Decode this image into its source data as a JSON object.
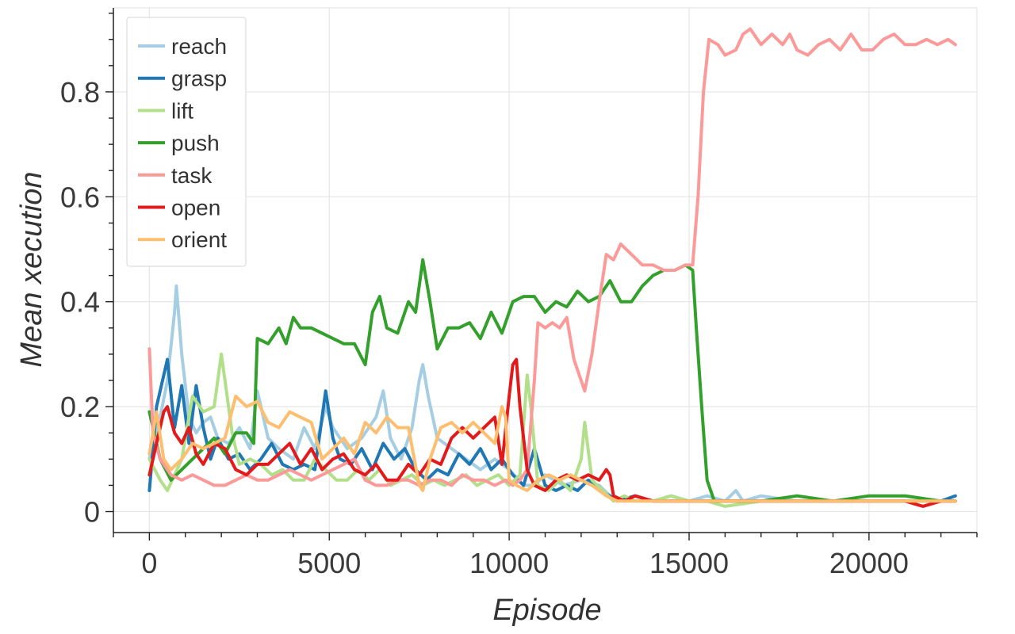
{
  "chart_data": {
    "type": "line",
    "title": "",
    "xlabel": "Episode",
    "ylabel": "Mean xecution",
    "xlim": [
      -1000,
      23000
    ],
    "ylim": [
      -0.04,
      0.96
    ],
    "xticks": [
      0,
      5000,
      10000,
      15000,
      20000
    ],
    "xtick_labels": [
      "0",
      "5000",
      "10000",
      "15000",
      "20000"
    ],
    "yticks": [
      0,
      0.2,
      0.4,
      0.6,
      0.8
    ],
    "ytick_labels": [
      "0",
      "0.2",
      "0.4",
      "0.6",
      "0.8"
    ],
    "grid": true,
    "legend_position": "top-left",
    "series": [
      {
        "name": "reach",
        "color": "#a6cee3",
        "x": [
          0,
          300,
          500,
          700,
          750,
          900,
          1100,
          1300,
          1500,
          1700,
          1900,
          2200,
          2500,
          2800,
          3000,
          3300,
          3600,
          4000,
          4300,
          4600,
          4900,
          5100,
          5500,
          5900,
          6300,
          6500,
          6700,
          7000,
          7300,
          7500,
          7600,
          7750,
          8000,
          8400,
          8800,
          9200,
          9600,
          10000,
          10400,
          10700,
          11000,
          11500,
          12000,
          12500,
          12800,
          13000,
          13500,
          14000,
          14500,
          15000,
          15500,
          16000,
          16300,
          16500,
          17000,
          18000,
          19000,
          20000,
          21000,
          22000,
          22400
        ],
        "y": [
          0.1,
          0.18,
          0.25,
          0.38,
          0.43,
          0.3,
          0.18,
          0.15,
          0.17,
          0.18,
          0.14,
          0.13,
          0.16,
          0.12,
          0.23,
          0.14,
          0.12,
          0.1,
          0.16,
          0.12,
          0.2,
          0.16,
          0.12,
          0.14,
          0.18,
          0.23,
          0.14,
          0.1,
          0.16,
          0.25,
          0.28,
          0.22,
          0.14,
          0.12,
          0.1,
          0.08,
          0.1,
          0.08,
          0.05,
          0.05,
          0.07,
          0.05,
          0.06,
          0.05,
          0.03,
          0.02,
          0.03,
          0.02,
          0.03,
          0.02,
          0.03,
          0.02,
          0.04,
          0.02,
          0.03,
          0.02,
          0.02,
          0.02,
          0.02,
          0.02,
          0.02
        ]
      },
      {
        "name": "grasp",
        "color": "#1f78b4",
        "x": [
          0,
          200,
          500,
          700,
          900,
          1100,
          1300,
          1500,
          1700,
          1900,
          2200,
          2500,
          2800,
          3100,
          3400,
          3700,
          4000,
          4300,
          4600,
          4900,
          5100,
          5300,
          5600,
          5900,
          6200,
          6500,
          6800,
          7100,
          7400,
          7700,
          8000,
          8300,
          8600,
          8900,
          9200,
          9500,
          9800,
          10100,
          10400,
          10700,
          11000,
          11300,
          11600,
          11900,
          12200,
          12500,
          12800,
          13000,
          13500,
          14000,
          14500,
          15000,
          15500,
          16000,
          17000,
          18000,
          19000,
          20000,
          21000,
          22000,
          22400
        ],
        "y": [
          0.04,
          0.2,
          0.29,
          0.16,
          0.24,
          0.13,
          0.24,
          0.16,
          0.1,
          0.14,
          0.1,
          0.11,
          0.08,
          0.1,
          0.13,
          0.09,
          0.08,
          0.09,
          0.08,
          0.23,
          0.14,
          0.1,
          0.09,
          0.12,
          0.08,
          0.13,
          0.1,
          0.12,
          0.08,
          0.06,
          0.08,
          0.07,
          0.11,
          0.09,
          0.12,
          0.08,
          0.1,
          0.07,
          0.05,
          0.12,
          0.05,
          0.04,
          0.05,
          0.04,
          0.06,
          0.04,
          0.03,
          0.02,
          0.03,
          0.02,
          0.02,
          0.02,
          0.02,
          0.02,
          0.02,
          0.02,
          0.02,
          0.02,
          0.02,
          0.02,
          0.03
        ]
      },
      {
        "name": "lift",
        "color": "#b2df8a",
        "x": [
          0,
          300,
          500,
          700,
          900,
          1200,
          1500,
          1800,
          2000,
          2100,
          2300,
          2500,
          2800,
          3100,
          3400,
          3700,
          4000,
          4300,
          4600,
          4900,
          5200,
          5500,
          5800,
          6100,
          6400,
          6700,
          7000,
          7300,
          7600,
          7900,
          8200,
          8500,
          8800,
          9100,
          9400,
          9700,
          10000,
          10300,
          10500,
          10600,
          10800,
          11100,
          11400,
          11700,
          12000,
          12100,
          12300,
          12600,
          12900,
          13200,
          13500,
          14000,
          14500,
          15000,
          15500,
          16000,
          17000,
          18000,
          19000,
          20000,
          21000,
          22000,
          22400
        ],
        "y": [
          0.1,
          0.06,
          0.04,
          0.07,
          0.1,
          0.22,
          0.19,
          0.2,
          0.3,
          0.25,
          0.15,
          0.09,
          0.1,
          0.09,
          0.07,
          0.08,
          0.06,
          0.06,
          0.1,
          0.08,
          0.06,
          0.06,
          0.08,
          0.06,
          0.08,
          0.05,
          0.06,
          0.07,
          0.05,
          0.06,
          0.05,
          0.06,
          0.07,
          0.05,
          0.06,
          0.07,
          0.05,
          0.07,
          0.26,
          0.2,
          0.05,
          0.04,
          0.06,
          0.04,
          0.1,
          0.17,
          0.06,
          0.04,
          0.02,
          0.03,
          0.02,
          0.02,
          0.03,
          0.02,
          0.02,
          0.01,
          0.02,
          0.02,
          0.02,
          0.02,
          0.02,
          0.02,
          0.02
        ]
      },
      {
        "name": "push",
        "color": "#33a02c",
        "x": [
          0,
          300,
          600,
          900,
          1200,
          1500,
          1800,
          2100,
          2400,
          2700,
          2900,
          3000,
          3300,
          3600,
          3800,
          4000,
          4200,
          4500,
          4800,
          5100,
          5400,
          5700,
          6000,
          6200,
          6400,
          6600,
          6900,
          7200,
          7400,
          7600,
          7800,
          8000,
          8300,
          8600,
          8900,
          9200,
          9500,
          9800,
          10100,
          10400,
          10700,
          11000,
          11300,
          11600,
          11900,
          12200,
          12500,
          12800,
          13100,
          13400,
          13700,
          14000,
          14300,
          14600,
          14900,
          15100,
          15200,
          15350,
          15500,
          15700,
          16000,
          17000,
          18000,
          19000,
          20000,
          21000,
          22000,
          22400
        ],
        "y": [
          0.19,
          0.1,
          0.06,
          0.08,
          0.1,
          0.12,
          0.14,
          0.11,
          0.15,
          0.15,
          0.13,
          0.33,
          0.32,
          0.35,
          0.32,
          0.37,
          0.35,
          0.35,
          0.34,
          0.33,
          0.32,
          0.32,
          0.28,
          0.38,
          0.41,
          0.35,
          0.34,
          0.4,
          0.38,
          0.48,
          0.4,
          0.31,
          0.35,
          0.35,
          0.36,
          0.33,
          0.38,
          0.34,
          0.4,
          0.41,
          0.41,
          0.38,
          0.4,
          0.39,
          0.42,
          0.4,
          0.41,
          0.44,
          0.4,
          0.4,
          0.43,
          0.45,
          0.46,
          0.46,
          0.47,
          0.46,
          0.35,
          0.2,
          0.06,
          0.02,
          0.02,
          0.02,
          0.03,
          0.02,
          0.03,
          0.03,
          0.02,
          0.02
        ]
      },
      {
        "name": "task",
        "color": "#fb9a99",
        "x": [
          0,
          100,
          300,
          600,
          900,
          1200,
          1500,
          1800,
          2100,
          2400,
          2700,
          3000,
          3300,
          3600,
          3900,
          4200,
          4500,
          4800,
          5100,
          5400,
          5700,
          6000,
          6300,
          6600,
          6900,
          7200,
          7500,
          7800,
          8100,
          8400,
          8700,
          9000,
          9300,
          9600,
          9900,
          10100,
          10300,
          10500,
          10700,
          10800,
          11000,
          11200,
          11400,
          11600,
          11800,
          11900,
          12100,
          12300,
          12500,
          12700,
          12900,
          13100,
          13400,
          13700,
          14000,
          14300,
          14600,
          14900,
          15100,
          15250,
          15400,
          15550,
          15800,
          16000,
          16300,
          16500,
          16700,
          17000,
          17300,
          17600,
          17800,
          18000,
          18300,
          18600,
          18900,
          19200,
          19500,
          19800,
          20100,
          20400,
          20700,
          21000,
          21300,
          21600,
          21900,
          22200,
          22400
        ],
        "y": [
          0.31,
          0.15,
          0.1,
          0.07,
          0.06,
          0.07,
          0.06,
          0.05,
          0.05,
          0.06,
          0.07,
          0.06,
          0.06,
          0.07,
          0.08,
          0.07,
          0.06,
          0.07,
          0.08,
          0.09,
          0.1,
          0.06,
          0.05,
          0.05,
          0.06,
          0.06,
          0.05,
          0.06,
          0.06,
          0.05,
          0.07,
          0.06,
          0.06,
          0.05,
          0.06,
          0.05,
          0.06,
          0.08,
          0.25,
          0.36,
          0.35,
          0.36,
          0.35,
          0.37,
          0.29,
          0.27,
          0.23,
          0.3,
          0.4,
          0.49,
          0.48,
          0.51,
          0.49,
          0.47,
          0.47,
          0.46,
          0.46,
          0.47,
          0.47,
          0.6,
          0.8,
          0.9,
          0.89,
          0.87,
          0.88,
          0.91,
          0.92,
          0.89,
          0.91,
          0.89,
          0.91,
          0.88,
          0.87,
          0.89,
          0.9,
          0.88,
          0.91,
          0.88,
          0.88,
          0.9,
          0.91,
          0.89,
          0.89,
          0.9,
          0.89,
          0.9,
          0.89
        ]
      },
      {
        "name": "open",
        "color": "#e31a1c",
        "x": [
          0,
          200,
          400,
          500,
          700,
          900,
          1100,
          1300,
          1500,
          1800,
          2100,
          2400,
          2700,
          3000,
          3300,
          3600,
          3900,
          4200,
          4500,
          4800,
          5100,
          5400,
          5700,
          6000,
          6300,
          6600,
          6900,
          7200,
          7500,
          7800,
          8100,
          8400,
          8700,
          9000,
          9300,
          9600,
          9800,
          10000,
          10100,
          10200,
          10300,
          10500,
          10700,
          11000,
          11300,
          11600,
          11900,
          12200,
          12500,
          12700,
          12800,
          12900,
          13200,
          13500,
          14000,
          14500,
          15000,
          15500,
          16000,
          17000,
          18000,
          19000,
          20000,
          21000,
          21500,
          22000,
          22400
        ],
        "y": [
          0.07,
          0.13,
          0.19,
          0.2,
          0.15,
          0.13,
          0.16,
          0.11,
          0.09,
          0.13,
          0.12,
          0.08,
          0.07,
          0.09,
          0.09,
          0.11,
          0.13,
          0.09,
          0.12,
          0.08,
          0.1,
          0.11,
          0.08,
          0.07,
          0.09,
          0.06,
          0.06,
          0.09,
          0.07,
          0.1,
          0.09,
          0.14,
          0.16,
          0.14,
          0.16,
          0.18,
          0.09,
          0.22,
          0.28,
          0.29,
          0.2,
          0.08,
          0.05,
          0.04,
          0.06,
          0.07,
          0.06,
          0.07,
          0.06,
          0.08,
          0.07,
          0.03,
          0.02,
          0.03,
          0.02,
          0.02,
          0.02,
          0.02,
          0.02,
          0.02,
          0.02,
          0.02,
          0.02,
          0.02,
          0.01,
          0.02,
          0.02
        ]
      },
      {
        "name": "orient",
        "color": "#fdbf6f",
        "x": [
          0,
          200,
          400,
          600,
          900,
          1200,
          1500,
          1800,
          2100,
          2400,
          2700,
          3000,
          3300,
          3600,
          3900,
          4200,
          4500,
          4800,
          5100,
          5400,
          5700,
          6000,
          6300,
          6600,
          6900,
          7200,
          7500,
          7600,
          7800,
          8100,
          8400,
          8700,
          9000,
          9300,
          9600,
          9800,
          9900,
          10000,
          10200,
          10500,
          10800,
          11100,
          11400,
          11700,
          12000,
          12300,
          12500,
          12700,
          13000,
          13500,
          14000,
          14500,
          15000,
          15500,
          16000,
          17000,
          18000,
          19000,
          20000,
          21000,
          22000,
          22400
        ],
        "y": [
          0.11,
          0.19,
          0.1,
          0.08,
          0.1,
          0.13,
          0.12,
          0.13,
          0.14,
          0.22,
          0.2,
          0.21,
          0.17,
          0.16,
          0.19,
          0.18,
          0.17,
          0.1,
          0.12,
          0.14,
          0.11,
          0.17,
          0.15,
          0.18,
          0.16,
          0.16,
          0.05,
          0.04,
          0.1,
          0.16,
          0.17,
          0.15,
          0.17,
          0.15,
          0.13,
          0.2,
          0.18,
          0.06,
          0.05,
          0.04,
          0.06,
          0.07,
          0.06,
          0.07,
          0.06,
          0.05,
          0.04,
          0.03,
          0.02,
          0.02,
          0.02,
          0.02,
          0.02,
          0.02,
          0.02,
          0.02,
          0.02,
          0.02,
          0.02,
          0.02,
          0.02,
          0.02
        ]
      }
    ]
  }
}
